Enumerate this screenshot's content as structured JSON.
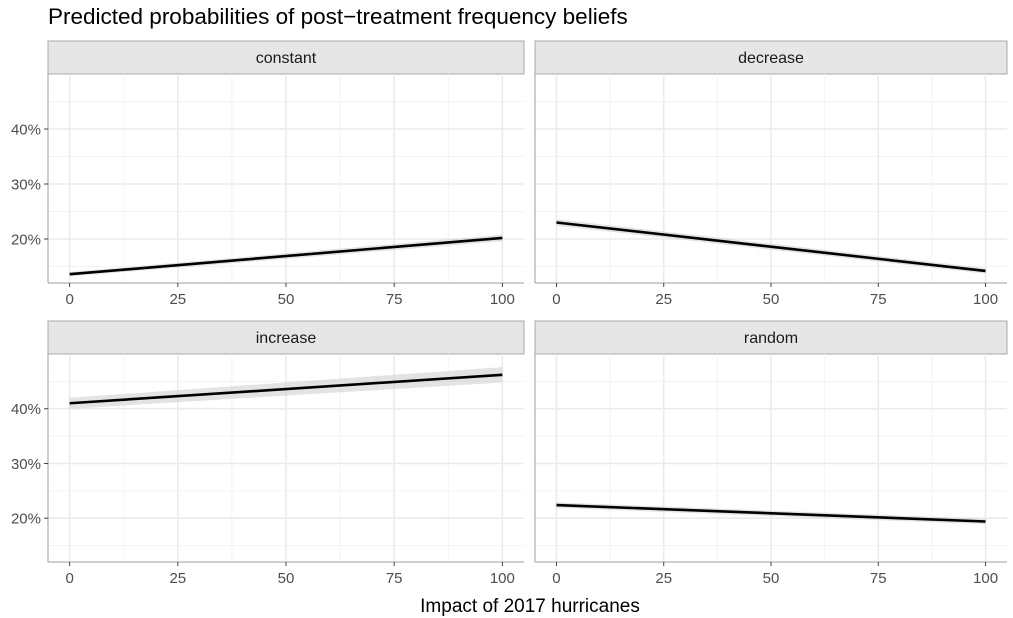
{
  "chart_data": {
    "type": "line",
    "title": "Predicted probabilities of post−treatment frequency beliefs",
    "xlabel": "Impact of 2017 hurricanes",
    "ylabel": "",
    "xlim": [
      -5,
      105
    ],
    "ylim": [
      12,
      50
    ],
    "x_ticks": [
      0,
      25,
      50,
      75,
      100
    ],
    "x_tick_labels": [
      "0",
      "25",
      "50",
      "75",
      "100"
    ],
    "y_ticks": [
      20,
      30,
      40
    ],
    "y_tick_labels": [
      "20%",
      "30%",
      "40%"
    ],
    "panels": [
      {
        "facet": "constant",
        "x": [
          0,
          100
        ],
        "values": [
          13.6,
          20.2
        ],
        "ci_lower": [
          13.2,
          19.6
        ],
        "ci_upper": [
          14.0,
          20.8
        ]
      },
      {
        "facet": "decrease",
        "x": [
          0,
          100
        ],
        "values": [
          23.0,
          14.2
        ],
        "ci_lower": [
          22.4,
          13.7
        ],
        "ci_upper": [
          23.6,
          14.7
        ]
      },
      {
        "facet": "increase",
        "x": [
          0,
          100
        ],
        "values": [
          41.0,
          46.2
        ],
        "ci_lower": [
          40.0,
          44.8
        ],
        "ci_upper": [
          42.0,
          47.6
        ]
      },
      {
        "facet": "random",
        "x": [
          0,
          100
        ],
        "values": [
          22.4,
          19.4
        ],
        "ci_lower": [
          21.9,
          18.9
        ],
        "ci_upper": [
          22.9,
          19.9
        ]
      }
    ],
    "grid": true
  }
}
